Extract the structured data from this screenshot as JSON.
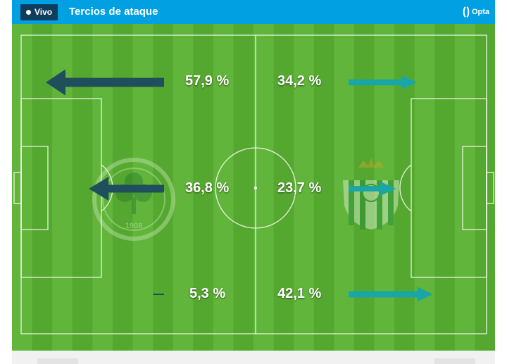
{
  "header": {
    "live_label": "Vivo",
    "title": "Tercios de ataque",
    "brand": "Opta"
  },
  "colors": {
    "header_bg": "#00a0e3",
    "home_arrow": "#1f4f5c",
    "away_arrow": "#1aa6a6",
    "pitch_light": "#61b53a",
    "pitch_dark": "#55a82f"
  },
  "attack_thirds": [
    {
      "home": "57,9 %",
      "away": "34,2 %",
      "home_value": 57.9,
      "away_value": 34.2
    },
    {
      "home": "36,8 %",
      "away": "23,7 %",
      "home_value": 36.8,
      "away_value": 23.7
    },
    {
      "home": "5,3 %",
      "away": "42,1 %",
      "home_value": 5.3,
      "away_value": 42.1
    }
  ],
  "crests": {
    "home": {
      "icon": "clover-crest-icon",
      "text": "1908"
    },
    "away": {
      "icon": "striped-shield-crest-icon"
    }
  }
}
